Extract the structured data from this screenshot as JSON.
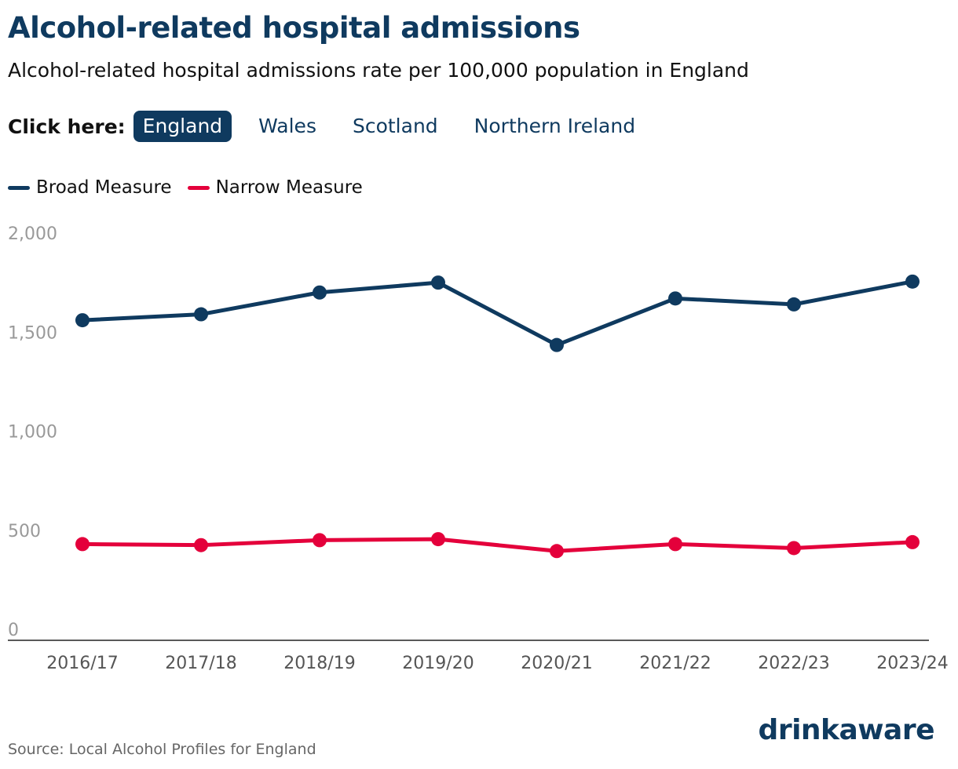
{
  "header": {
    "title": "Alcohol-related hospital admissions",
    "subtitle": "Alcohol-related hospital admissions rate per 100,000 population in England"
  },
  "tabs": {
    "label": "Click here:",
    "items": [
      {
        "label": "England",
        "active": true
      },
      {
        "label": "Wales",
        "active": false
      },
      {
        "label": "Scotland",
        "active": false
      },
      {
        "label": "Northern Ireland",
        "active": false
      }
    ]
  },
  "colors": {
    "broad": "#0f3a5f",
    "narrow": "#e4003b",
    "axis_text": "#999999",
    "x_text": "#555555"
  },
  "chart_data": {
    "type": "line",
    "categories": [
      "2016/17",
      "2017/18",
      "2018/19",
      "2019/20",
      "2020/21",
      "2021/22",
      "2022/23",
      "2023/24"
    ],
    "series": [
      {
        "name": "Broad Measure",
        "values": [
          1560,
          1590,
          1700,
          1750,
          1435,
          1670,
          1640,
          1755
        ]
      },
      {
        "name": "Narrow Measure",
        "values": [
          430,
          425,
          450,
          455,
          395,
          430,
          410,
          440
        ]
      }
    ],
    "ylim": [
      0,
      2000
    ],
    "yticks": [
      0,
      500,
      1000,
      1500,
      2000
    ],
    "ytick_labels": [
      "0",
      "500",
      "1,000",
      "1,500",
      "2,000"
    ],
    "grid": false,
    "legend": "top-left"
  },
  "footer": {
    "source": "Source: Local Alcohol Profiles for England",
    "logo": "drinkaware"
  }
}
